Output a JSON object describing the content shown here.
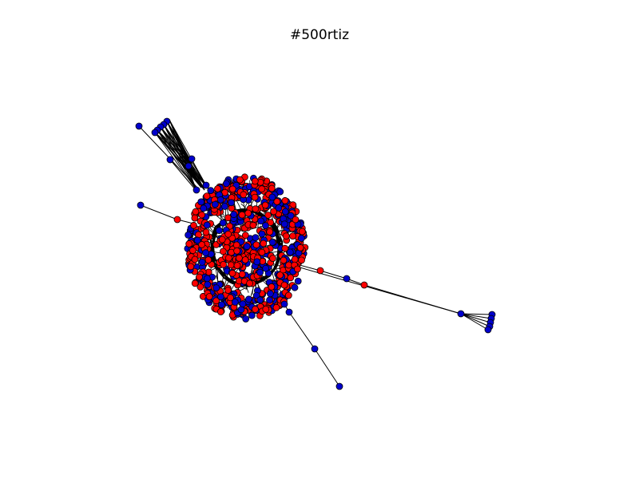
{
  "figure": {
    "title": "#500rtiz"
  },
  "colors": {
    "background": "#ffffff",
    "edge": "#000000",
    "node_red": "#ff0000",
    "node_blue": "#0000cc",
    "node_outline": "#000000"
  },
  "graph": {
    "type": "network",
    "node_classes": [
      "red",
      "blue"
    ]
  }
}
